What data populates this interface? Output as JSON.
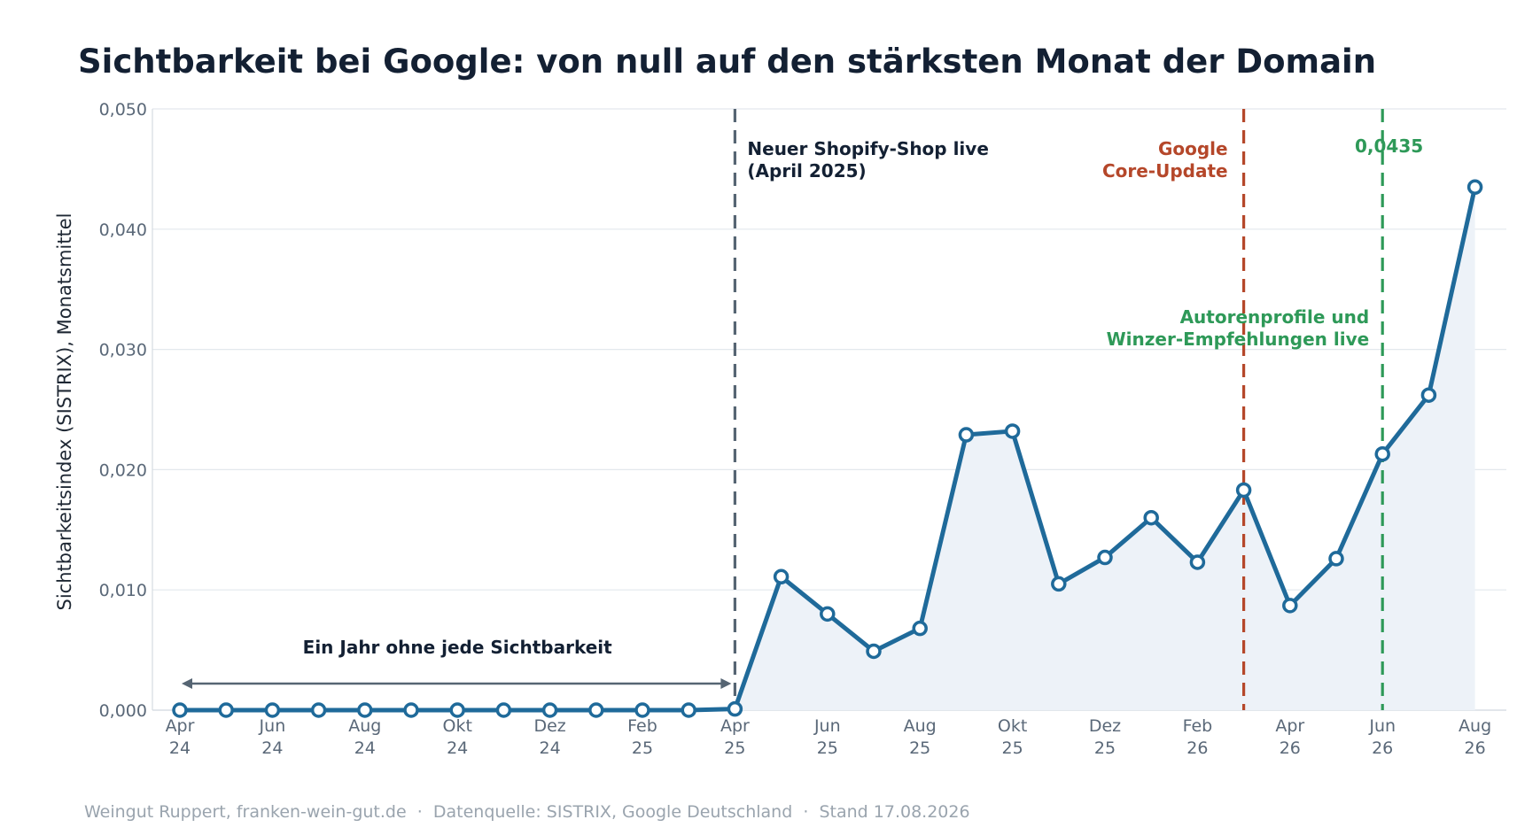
{
  "chart_data": {
    "type": "line",
    "title": "Sichtbarkeit bei Google: von null auf den stärksten Monat der Domain",
    "ylabel": "Sichtbarkeitsindex (SISTRIX), Monatsmittel",
    "xlabel": "",
    "ylim": [
      0,
      0.05
    ],
    "yticks": [
      "0,000",
      "0,010",
      "0,020",
      "0,030",
      "0,040",
      "0,050"
    ],
    "ytick_values": [
      0,
      0.01,
      0.02,
      0.03,
      0.04,
      0.05
    ],
    "grid": true,
    "x": [
      "Apr 24",
      "Mai 24",
      "Jun 24",
      "Jul 24",
      "Aug 24",
      "Sep 24",
      "Okt 24",
      "Nov 24",
      "Dez 24",
      "Jan 25",
      "Feb 25",
      "Mär 25",
      "Apr 25",
      "Mai 25",
      "Jun 25",
      "Jul 25",
      "Aug 25",
      "Sep 25",
      "Okt 25",
      "Nov 25",
      "Dez 25",
      "Jan 26",
      "Feb 26",
      "Mär 26",
      "Apr 26",
      "Mai 26",
      "Jun 26",
      "Jul 26",
      "Aug 26"
    ],
    "xticks": [
      {
        "month": "Apr",
        "year": "24"
      },
      {
        "month": "Jun",
        "year": "24"
      },
      {
        "month": "Aug",
        "year": "24"
      },
      {
        "month": "Okt",
        "year": "24"
      },
      {
        "month": "Dez",
        "year": "24"
      },
      {
        "month": "Feb",
        "year": "25"
      },
      {
        "month": "Apr",
        "year": "25"
      },
      {
        "month": "Jun",
        "year": "25"
      },
      {
        "month": "Aug",
        "year": "25"
      },
      {
        "month": "Okt",
        "year": "25"
      },
      {
        "month": "Dez",
        "year": "25"
      },
      {
        "month": "Feb",
        "year": "26"
      },
      {
        "month": "Apr",
        "year": "26"
      },
      {
        "month": "Jun",
        "year": "26"
      },
      {
        "month": "Aug",
        "year": "26"
      }
    ],
    "series": [
      {
        "values": [
          0,
          0,
          0,
          0,
          0,
          0,
          0,
          0,
          0,
          0,
          0,
          0,
          0.0001,
          0.0111,
          0.008,
          0.0049,
          0.0068,
          0.0229,
          0.0232,
          0.0105,
          0.0127,
          0.016,
          0.0123,
          0.0183,
          0.0087,
          0.0126,
          0.0213,
          0.0262,
          0.0435
        ],
        "color": "#1f6a9a",
        "fill": "#edf2f8"
      }
    ],
    "events": [
      {
        "month_index": 12,
        "lines": [
          "Neuer Shopify-Shop live",
          "(April 2025)"
        ],
        "color": "#566573",
        "text_color": "#132033"
      },
      {
        "month_index": 23,
        "lines": [
          "Google",
          "Core-Update"
        ],
        "color": "#b5472a",
        "text_color": "#b5472a"
      },
      {
        "month_index": 26,
        "lines": [
          "Autorenprofile und",
          "Winzer-Empfehlungen live"
        ],
        "color": "#2e9958",
        "text_color": "#2e9958"
      }
    ],
    "range_annotation": {
      "from_index": 0,
      "to_index": 12,
      "text": "Ein Jahr ohne jede Sichtbarkeit",
      "color": "#566573"
    },
    "peak_label": {
      "index": 28,
      "text": "0,0435",
      "color": "#2e9958"
    },
    "footer": "Weingut Ruppert, franken-wein-gut.de  ·  Datenquelle: SISTRIX, Google Deutschland  ·  Stand 17.08.2026"
  }
}
